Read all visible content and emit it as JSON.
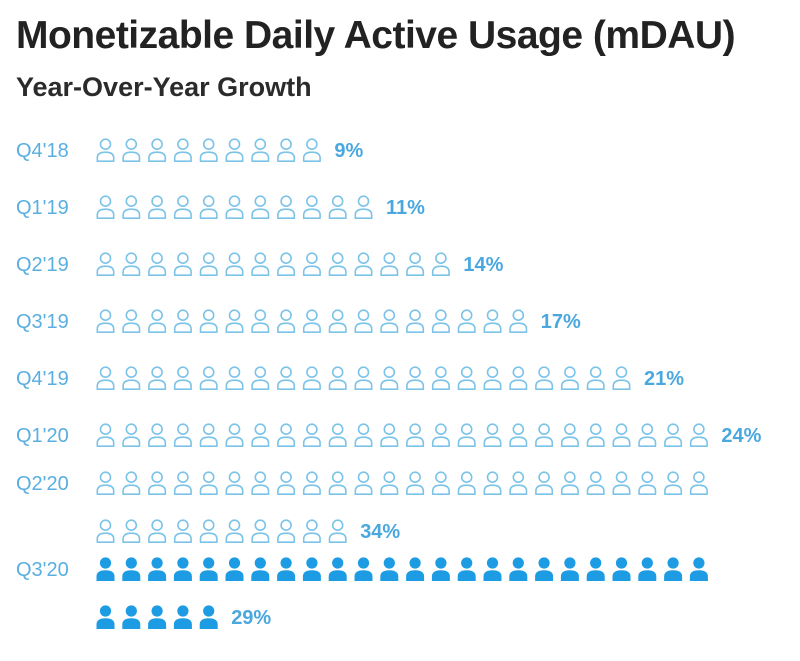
{
  "chart_data": {
    "type": "pictograph",
    "title": "Monetizable Daily Active Usage (mDAU)",
    "subtitle": "Year-Over-Year Growth",
    "categories": [
      "Q4'18",
      "Q1'19",
      "Q2'19",
      "Q3'19",
      "Q4'19",
      "Q1'20",
      "Q2'20",
      "Q3'20"
    ],
    "value_labels": [
      "9%",
      "11%",
      "14%",
      "17%",
      "21%",
      "24%",
      "34%",
      "29%"
    ],
    "values": [
      9,
      11,
      14,
      17,
      21,
      24,
      34,
      29
    ],
    "highlight": "Q3'20",
    "units_per_icon": 1,
    "icons_per_row": 24
  },
  "colors": {
    "outline": "#7cc3e8",
    "filled": "#1d9be3",
    "label": "#5aaee0",
    "value": "#4aa8df",
    "title": "#222222"
  },
  "icon": "person-icon"
}
